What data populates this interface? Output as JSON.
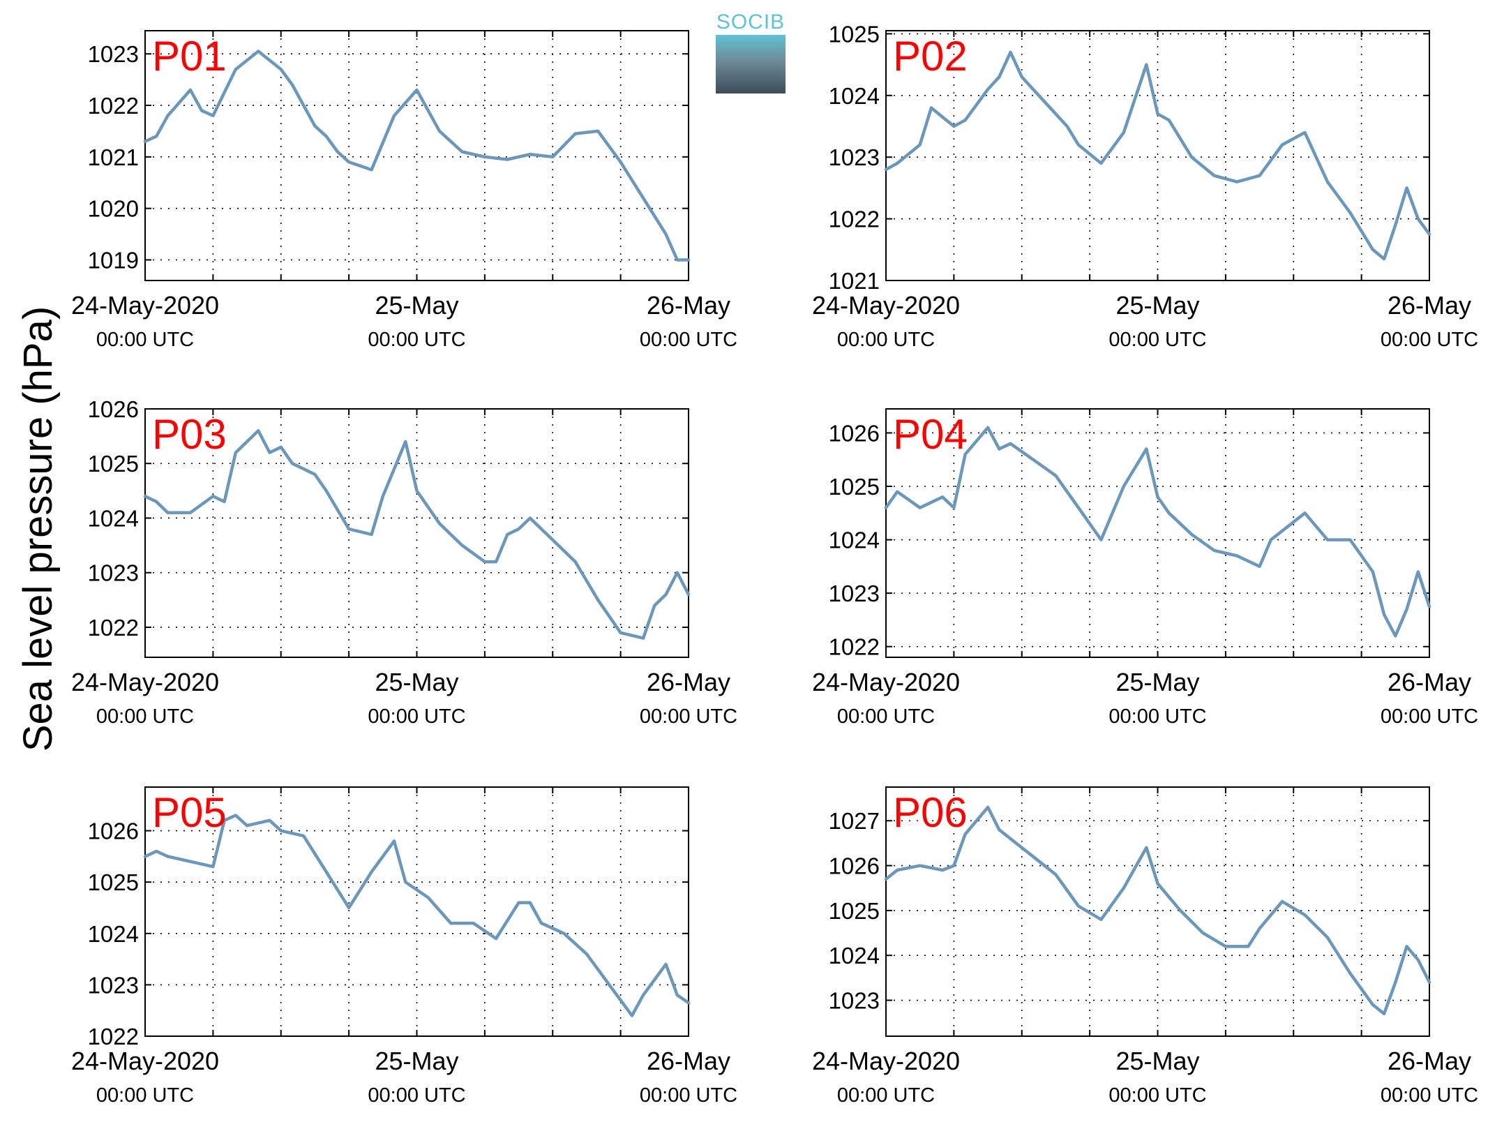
{
  "figure": {
    "ylabel": "Sea level pressure (hPa)",
    "logo_text": "SOCIB",
    "line_color": "#6a97ba",
    "label_color": "#ff0000"
  },
  "chart_data": [
    {
      "type": "line",
      "title": "P01",
      "ylim": [
        1018.6,
        1023.45
      ],
      "yticks": [
        1019,
        1020,
        1021,
        1022,
        1023
      ],
      "x_ticks": [
        {
          "date": "24-May-2020",
          "time": "00:00 UTC"
        },
        {
          "date": "25-May",
          "time": "00:00 UTC"
        },
        {
          "date": "26-May",
          "time": "00:00 UTC"
        }
      ],
      "series": [
        {
          "x": [
            "2020-05-24T00:00",
            "2020-05-24T01:00",
            "2020-05-24T02:00",
            "2020-05-24T04:00",
            "2020-05-24T05:00",
            "2020-05-24T06:00",
            "2020-05-24T08:00",
            "2020-05-24T10:00",
            "2020-05-24T12:00",
            "2020-05-24T13:00",
            "2020-05-24T15:00",
            "2020-05-24T16:00",
            "2020-05-24T17:00",
            "2020-05-24T18:00",
            "2020-05-24T20:00",
            "2020-05-24T22:00",
            "2020-05-25T00:00",
            "2020-05-25T02:00",
            "2020-05-25T04:00",
            "2020-05-25T06:00",
            "2020-05-25T08:00",
            "2020-05-25T10:00",
            "2020-05-25T12:00",
            "2020-05-25T14:00",
            "2020-05-25T16:00",
            "2020-05-25T18:00",
            "2020-05-25T20:00",
            "2020-05-25T22:00",
            "2020-05-25T23:00",
            "2020-05-26T00:00"
          ],
          "y": [
            1021.3,
            1021.4,
            1021.8,
            1022.3,
            1021.9,
            1021.8,
            1022.7,
            1023.05,
            1022.7,
            1022.4,
            1021.6,
            1021.4,
            1021.1,
            1020.9,
            1020.75,
            1021.8,
            1022.3,
            1021.5,
            1021.1,
            1021.0,
            1020.95,
            1021.05,
            1021.0,
            1021.45,
            1021.5,
            1020.9,
            1020.2,
            1019.5,
            1019.0,
            1019.0
          ]
        }
      ]
    },
    {
      "type": "line",
      "title": "P02",
      "ylim": [
        1021.0,
        1025.05
      ],
      "yticks": [
        1021,
        1022,
        1023,
        1024,
        1025
      ],
      "x_ticks": [
        {
          "date": "24-May-2020",
          "time": "00:00 UTC"
        },
        {
          "date": "25-May",
          "time": "00:00 UTC"
        },
        {
          "date": "26-May",
          "time": "00:00 UTC"
        }
      ],
      "series": [
        {
          "x": [
            "2020-05-24T00:00",
            "2020-05-24T01:00",
            "2020-05-24T03:00",
            "2020-05-24T04:00",
            "2020-05-24T06:00",
            "2020-05-24T07:00",
            "2020-05-24T09:00",
            "2020-05-24T10:00",
            "2020-05-24T11:00",
            "2020-05-24T12:00",
            "2020-05-24T14:00",
            "2020-05-24T16:00",
            "2020-05-24T17:00",
            "2020-05-24T19:00",
            "2020-05-24T21:00",
            "2020-05-24T23:00",
            "2020-05-25T00:00",
            "2020-05-25T01:00",
            "2020-05-25T03:00",
            "2020-05-25T05:00",
            "2020-05-25T07:00",
            "2020-05-25T09:00",
            "2020-05-25T11:00",
            "2020-05-25T13:00",
            "2020-05-25T15:00",
            "2020-05-25T17:00",
            "2020-05-25T19:00",
            "2020-05-25T20:00",
            "2020-05-25T21:00",
            "2020-05-25T22:00",
            "2020-05-25T23:00",
            "2020-05-26T00:00"
          ],
          "y": [
            1022.8,
            1022.9,
            1023.2,
            1023.8,
            1023.5,
            1023.6,
            1024.1,
            1024.3,
            1024.7,
            1024.3,
            1023.9,
            1023.5,
            1023.2,
            1022.9,
            1023.4,
            1024.5,
            1023.7,
            1023.6,
            1023.0,
            1022.7,
            1022.6,
            1022.7,
            1023.2,
            1023.4,
            1022.6,
            1022.1,
            1021.5,
            1021.35,
            1021.9,
            1022.5,
            1022.0,
            1021.75
          ]
        }
      ]
    },
    {
      "type": "line",
      "title": "P03",
      "ylim": [
        1021.45,
        1026.0
      ],
      "yticks": [
        1022,
        1023,
        1024,
        1025,
        1026
      ],
      "x_ticks": [
        {
          "date": "24-May-2020",
          "time": "00:00 UTC"
        },
        {
          "date": "25-May",
          "time": "00:00 UTC"
        },
        {
          "date": "26-May",
          "time": "00:00 UTC"
        }
      ],
      "series": [
        {
          "x": [
            "2020-05-24T00:00",
            "2020-05-24T01:00",
            "2020-05-24T02:00",
            "2020-05-24T04:00",
            "2020-05-24T06:00",
            "2020-05-24T07:00",
            "2020-05-24T08:00",
            "2020-05-24T10:00",
            "2020-05-24T11:00",
            "2020-05-24T12:00",
            "2020-05-24T13:00",
            "2020-05-24T15:00",
            "2020-05-24T16:00",
            "2020-05-24T18:00",
            "2020-05-24T20:00",
            "2020-05-24T21:00",
            "2020-05-24T23:00",
            "2020-05-25T00:00",
            "2020-05-25T02:00",
            "2020-05-25T04:00",
            "2020-05-25T06:00",
            "2020-05-25T07:00",
            "2020-05-25T08:00",
            "2020-05-25T09:00",
            "2020-05-25T10:00",
            "2020-05-25T12:00",
            "2020-05-25T14:00",
            "2020-05-25T16:00",
            "2020-05-25T18:00",
            "2020-05-25T20:00",
            "2020-05-25T21:00",
            "2020-05-25T22:00",
            "2020-05-25T23:00",
            "2020-05-26T00:00"
          ],
          "y": [
            1024.4,
            1024.3,
            1024.1,
            1024.1,
            1024.4,
            1024.3,
            1025.2,
            1025.6,
            1025.2,
            1025.3,
            1025.0,
            1024.8,
            1024.5,
            1023.8,
            1023.7,
            1024.4,
            1025.4,
            1024.5,
            1023.9,
            1023.5,
            1023.2,
            1023.2,
            1023.7,
            1023.8,
            1024.0,
            1023.6,
            1023.2,
            1022.5,
            1021.9,
            1021.8,
            1022.4,
            1022.6,
            1023.0,
            1022.6
          ]
        }
      ]
    },
    {
      "type": "line",
      "title": "P04",
      "ylim": [
        1021.8,
        1026.45
      ],
      "yticks": [
        1022,
        1023,
        1024,
        1025,
        1026
      ],
      "x_ticks": [
        {
          "date": "24-May-2020",
          "time": "00:00 UTC"
        },
        {
          "date": "25-May",
          "time": "00:00 UTC"
        },
        {
          "date": "26-May",
          "time": "00:00 UTC"
        }
      ],
      "series": [
        {
          "x": [
            "2020-05-24T00:00",
            "2020-05-24T01:00",
            "2020-05-24T03:00",
            "2020-05-24T05:00",
            "2020-05-24T06:00",
            "2020-05-24T07:00",
            "2020-05-24T09:00",
            "2020-05-24T10:00",
            "2020-05-24T11:00",
            "2020-05-24T13:00",
            "2020-05-24T15:00",
            "2020-05-24T17:00",
            "2020-05-24T19:00",
            "2020-05-24T21:00",
            "2020-05-24T23:00",
            "2020-05-25T00:00",
            "2020-05-25T01:00",
            "2020-05-25T03:00",
            "2020-05-25T05:00",
            "2020-05-25T07:00",
            "2020-05-25T09:00",
            "2020-05-25T10:00",
            "2020-05-25T13:00",
            "2020-05-25T15:00",
            "2020-05-25T17:00",
            "2020-05-25T19:00",
            "2020-05-25T20:00",
            "2020-05-25T21:00",
            "2020-05-25T22:00",
            "2020-05-25T23:00",
            "2020-05-26T00:00"
          ],
          "y": [
            1024.6,
            1024.9,
            1024.6,
            1024.8,
            1024.6,
            1025.6,
            1026.1,
            1025.7,
            1025.8,
            1025.5,
            1025.2,
            1024.6,
            1024.0,
            1025.0,
            1025.7,
            1024.8,
            1024.5,
            1024.1,
            1023.8,
            1023.7,
            1023.5,
            1024.0,
            1024.5,
            1024.0,
            1024.0,
            1023.4,
            1022.6,
            1022.2,
            1022.7,
            1023.4,
            1022.75
          ]
        }
      ]
    },
    {
      "type": "line",
      "title": "P05",
      "ylim": [
        1022.0,
        1026.85
      ],
      "yticks": [
        1022,
        1023,
        1024,
        1025,
        1026
      ],
      "x_ticks": [
        {
          "date": "24-May-2020",
          "time": "00:00 UTC"
        },
        {
          "date": "25-May",
          "time": "00:00 UTC"
        },
        {
          "date": "26-May",
          "time": "00:00 UTC"
        }
      ],
      "series": [
        {
          "x": [
            "2020-05-24T00:00",
            "2020-05-24T01:00",
            "2020-05-24T02:00",
            "2020-05-24T04:00",
            "2020-05-24T06:00",
            "2020-05-24T07:00",
            "2020-05-24T08:00",
            "2020-05-24T09:00",
            "2020-05-24T11:00",
            "2020-05-24T12:00",
            "2020-05-24T14:00",
            "2020-05-24T16:00",
            "2020-05-24T18:00",
            "2020-05-24T20:00",
            "2020-05-24T22:00",
            "2020-05-24T23:00",
            "2020-05-25T01:00",
            "2020-05-25T03:00",
            "2020-05-25T05:00",
            "2020-05-25T07:00",
            "2020-05-25T09:00",
            "2020-05-25T10:00",
            "2020-05-25T11:00",
            "2020-05-25T13:00",
            "2020-05-25T15:00",
            "2020-05-25T17:00",
            "2020-05-25T19:00",
            "2020-05-25T20:00",
            "2020-05-25T21:00",
            "2020-05-25T22:00",
            "2020-05-25T23:00",
            "2020-05-26T00:00"
          ],
          "y": [
            1025.5,
            1025.6,
            1025.5,
            1025.4,
            1025.3,
            1026.2,
            1026.3,
            1026.1,
            1026.2,
            1026.0,
            1025.9,
            1025.2,
            1024.5,
            1025.2,
            1025.8,
            1025.0,
            1024.7,
            1024.2,
            1024.2,
            1023.9,
            1024.6,
            1024.6,
            1024.2,
            1024.0,
            1023.6,
            1023.0,
            1022.4,
            1022.8,
            1023.1,
            1023.4,
            1022.8,
            1022.65
          ]
        }
      ]
    },
    {
      "type": "line",
      "title": "P06",
      "ylim": [
        1022.2,
        1027.75
      ],
      "yticks": [
        1023,
        1024,
        1025,
        1026,
        1027
      ],
      "x_ticks": [
        {
          "date": "24-May-2020",
          "time": "00:00 UTC"
        },
        {
          "date": "25-May",
          "time": "00:00 UTC"
        },
        {
          "date": "26-May",
          "time": "00:00 UTC"
        }
      ],
      "series": [
        {
          "x": [
            "2020-05-24T00:00",
            "2020-05-24T01:00",
            "2020-05-24T03:00",
            "2020-05-24T05:00",
            "2020-05-24T06:00",
            "2020-05-24T07:00",
            "2020-05-24T09:00",
            "2020-05-24T10:00",
            "2020-05-24T11:00",
            "2020-05-24T13:00",
            "2020-05-24T15:00",
            "2020-05-24T17:00",
            "2020-05-24T19:00",
            "2020-05-24T21:00",
            "2020-05-24T23:00",
            "2020-05-25T00:00",
            "2020-05-25T01:00",
            "2020-05-25T02:00",
            "2020-05-25T04:00",
            "2020-05-25T06:00",
            "2020-05-25T08:00",
            "2020-05-25T09:00",
            "2020-05-25T11:00",
            "2020-05-25T13:00",
            "2020-05-25T15:00",
            "2020-05-25T17:00",
            "2020-05-25T19:00",
            "2020-05-25T20:00",
            "2020-05-25T21:00",
            "2020-05-25T22:00",
            "2020-05-25T23:00",
            "2020-05-26T00:00"
          ],
          "y": [
            1025.7,
            1025.9,
            1026.0,
            1025.9,
            1026.0,
            1026.7,
            1027.3,
            1026.8,
            1026.6,
            1026.2,
            1025.8,
            1025.1,
            1024.8,
            1025.5,
            1026.4,
            1025.6,
            1025.3,
            1025.0,
            1024.5,
            1024.2,
            1024.2,
            1024.6,
            1025.2,
            1024.9,
            1024.4,
            1023.6,
            1022.9,
            1022.7,
            1023.4,
            1024.2,
            1023.9,
            1023.4
          ]
        }
      ]
    }
  ]
}
